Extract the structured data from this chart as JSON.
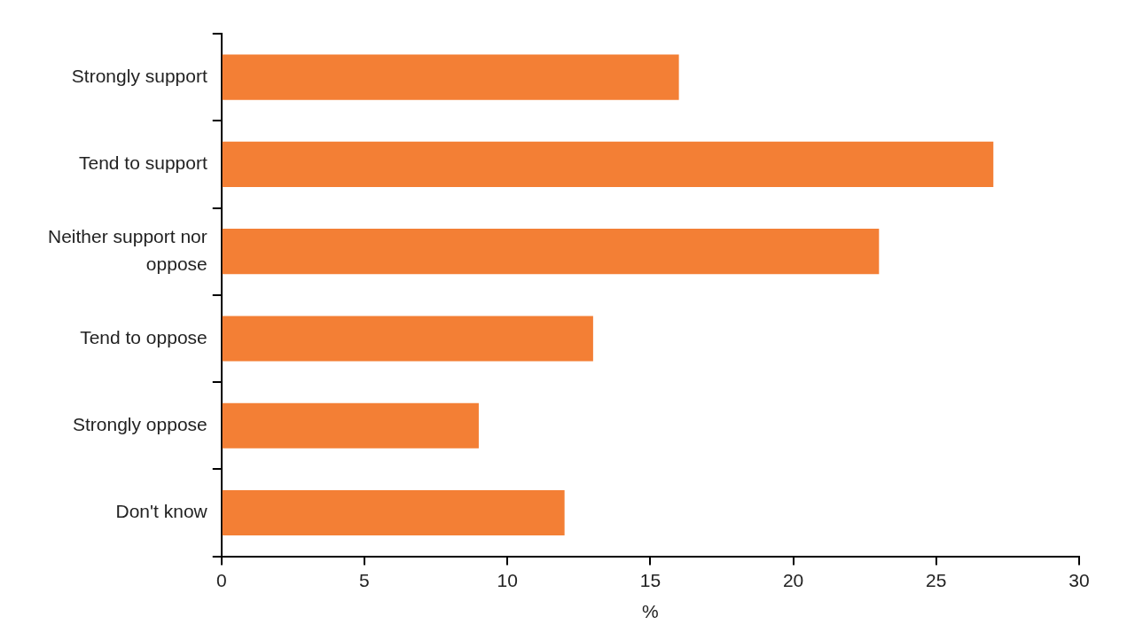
{
  "chart_data": {
    "type": "bar",
    "orientation": "horizontal",
    "categories": [
      "Strongly support",
      "Tend to support",
      "Neither support nor oppose",
      "Tend to oppose",
      "Strongly oppose",
      "Don't know"
    ],
    "values": [
      16,
      27,
      23,
      13,
      9,
      12
    ],
    "color": "#f37f35",
    "xlabel": "%",
    "xlim": [
      0,
      30
    ],
    "xticks": [
      0,
      5,
      10,
      15,
      20,
      25,
      30
    ],
    "grid": false,
    "legend": false
  }
}
